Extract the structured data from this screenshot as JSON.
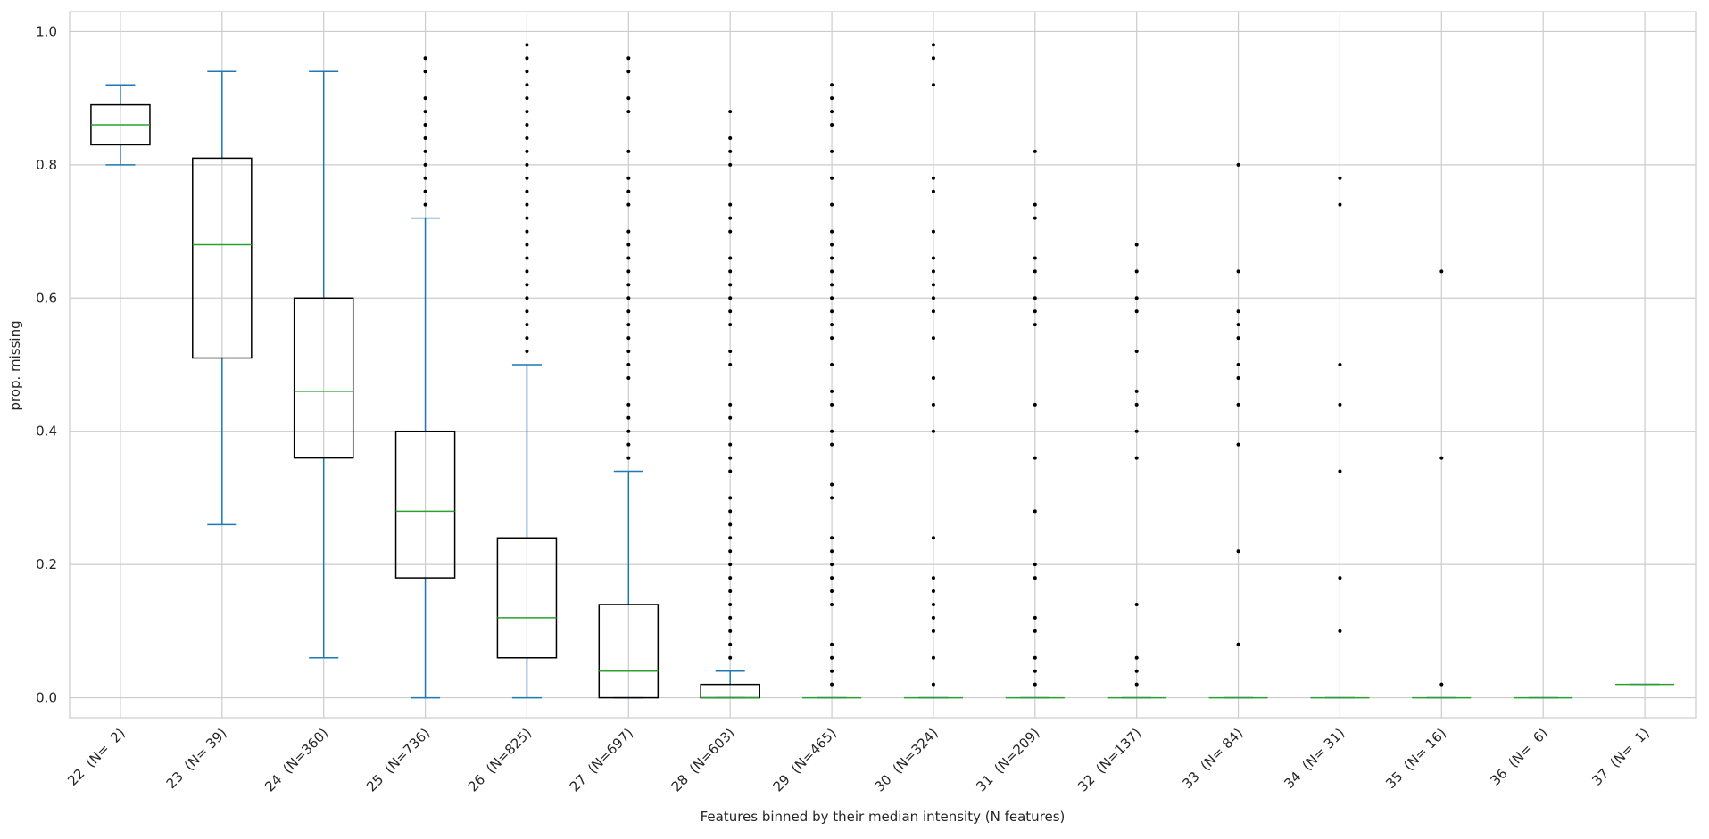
{
  "chart_data": {
    "type": "box",
    "xlabel": "Features binned by their median intensity (N features)",
    "ylabel": "prop. missing",
    "categories": [
      "22  (N=  2)",
      "23  (N= 39)",
      "24  (N=360)",
      "25  (N=736)",
      "26  (N=825)",
      "27  (N=697)",
      "28  (N=603)",
      "29  (N=465)",
      "30  (N=324)",
      "31  (N=209)",
      "32  (N=137)",
      "33  (N= 84)",
      "34  (N= 31)",
      "35  (N= 16)",
      "36  (N=  6)",
      "37  (N=  1)"
    ],
    "boxes": [
      {
        "whislo": 0.8,
        "q1": 0.83,
        "med": 0.86,
        "q3": 0.89,
        "whishi": 0.92,
        "fliers": []
      },
      {
        "whislo": 0.26,
        "q1": 0.51,
        "med": 0.68,
        "q3": 0.81,
        "whishi": 0.94,
        "fliers": []
      },
      {
        "whislo": 0.06,
        "q1": 0.36,
        "med": 0.46,
        "q3": 0.6,
        "whishi": 0.94,
        "fliers": []
      },
      {
        "whislo": 0,
        "q1": 0.18,
        "med": 0.28,
        "q3": 0.4,
        "whishi": 0.72,
        "fliers": [
          0.74,
          0.76,
          0.78,
          0.8,
          0.82,
          0.84,
          0.86,
          0.88,
          0.9,
          0.94,
          0.96
        ]
      },
      {
        "whislo": 0,
        "q1": 0.06,
        "med": 0.12,
        "q3": 0.24,
        "whishi": 0.5,
        "fliers": [
          0.52,
          0.54,
          0.56,
          0.58,
          0.6,
          0.62,
          0.64,
          0.66,
          0.68,
          0.7,
          0.72,
          0.74,
          0.76,
          0.78,
          0.8,
          0.82,
          0.84,
          0.86,
          0.88,
          0.9,
          0.92,
          0.94,
          0.96,
          0.98
        ]
      },
      {
        "whislo": 0,
        "q1": 0,
        "med": 0.04,
        "q3": 0.14,
        "whishi": 0.34,
        "fliers": [
          0.36,
          0.38,
          0.4,
          0.42,
          0.44,
          0.48,
          0.5,
          0.52,
          0.54,
          0.56,
          0.58,
          0.6,
          0.62,
          0.64,
          0.66,
          0.68,
          0.7,
          0.74,
          0.76,
          0.78,
          0.82,
          0.88,
          0.9,
          0.94,
          0.96
        ]
      },
      {
        "whislo": 0,
        "q1": 0,
        "med": 0,
        "q3": 0.02,
        "whishi": 0.04,
        "fliers": [
          0.06,
          0.08,
          0.1,
          0.12,
          0.14,
          0.16,
          0.18,
          0.2,
          0.22,
          0.24,
          0.26,
          0.28,
          0.3,
          0.34,
          0.36,
          0.38,
          0.42,
          0.44,
          0.5,
          0.52,
          0.56,
          0.58,
          0.6,
          0.62,
          0.64,
          0.66,
          0.7,
          0.72,
          0.74,
          0.8,
          0.82,
          0.84,
          0.88
        ]
      },
      {
        "whislo": 0,
        "q1": 0,
        "med": 0,
        "q3": 0,
        "whishi": 0,
        "fliers": [
          0.02,
          0.04,
          0.06,
          0.08,
          0.14,
          0.16,
          0.18,
          0.2,
          0.22,
          0.24,
          0.3,
          0.32,
          0.38,
          0.4,
          0.44,
          0.46,
          0.5,
          0.54,
          0.56,
          0.58,
          0.6,
          0.62,
          0.64,
          0.66,
          0.68,
          0.7,
          0.74,
          0.78,
          0.82,
          0.86,
          0.88,
          0.9,
          0.92
        ]
      },
      {
        "whislo": 0,
        "q1": 0,
        "med": 0,
        "q3": 0,
        "whishi": 0,
        "fliers": [
          0.02,
          0.06,
          0.1,
          0.12,
          0.14,
          0.16,
          0.18,
          0.24,
          0.4,
          0.44,
          0.48,
          0.54,
          0.58,
          0.6,
          0.62,
          0.64,
          0.66,
          0.7,
          0.76,
          0.78,
          0.92,
          0.96,
          0.98
        ]
      },
      {
        "whislo": 0,
        "q1": 0,
        "med": 0,
        "q3": 0,
        "whishi": 0,
        "fliers": [
          0.02,
          0.04,
          0.06,
          0.1,
          0.12,
          0.18,
          0.2,
          0.28,
          0.36,
          0.44,
          0.56,
          0.58,
          0.6,
          0.64,
          0.66,
          0.72,
          0.74,
          0.82
        ]
      },
      {
        "whislo": 0,
        "q1": 0,
        "med": 0,
        "q3": 0,
        "whishi": 0,
        "fliers": [
          0.02,
          0.04,
          0.06,
          0.14,
          0.36,
          0.4,
          0.44,
          0.46,
          0.52,
          0.58,
          0.6,
          0.64,
          0.68
        ]
      },
      {
        "whislo": 0,
        "q1": 0,
        "med": 0,
        "q3": 0,
        "whishi": 0,
        "fliers": [
          0.08,
          0.22,
          0.38,
          0.44,
          0.48,
          0.5,
          0.54,
          0.56,
          0.58,
          0.64,
          0.8
        ]
      },
      {
        "whislo": 0,
        "q1": 0,
        "med": 0,
        "q3": 0,
        "whishi": 0,
        "fliers": [
          0.1,
          0.18,
          0.34,
          0.44,
          0.5,
          0.74,
          0.78
        ]
      },
      {
        "whislo": 0,
        "q1": 0,
        "med": 0,
        "q3": 0,
        "whishi": 0,
        "fliers": [
          0.02,
          0.36,
          0.64
        ]
      },
      {
        "whislo": 0,
        "q1": 0,
        "med": 0,
        "q3": 0,
        "whishi": 0,
        "fliers": []
      },
      {
        "whislo": 0.02,
        "q1": 0.02,
        "med": 0.02,
        "q3": 0.02,
        "whishi": 0.02,
        "fliers": []
      }
    ],
    "box_color": "#000000",
    "whisker_color": "#1f77b4",
    "median_color": "#2ca02c",
    "flier_color": "#000000",
    "ylim": [
      -0.03,
      1.03
    ],
    "yticks": [
      {
        "value": 0,
        "label": "0.0"
      },
      {
        "value": 0.2,
        "label": "0.2"
      },
      {
        "value": 0.4,
        "label": "0.4"
      },
      {
        "value": 0.6,
        "label": "0.6"
      },
      {
        "value": 0.8,
        "label": "0.8"
      },
      {
        "value": 1,
        "label": "1.0"
      }
    ],
    "grid": true
  }
}
